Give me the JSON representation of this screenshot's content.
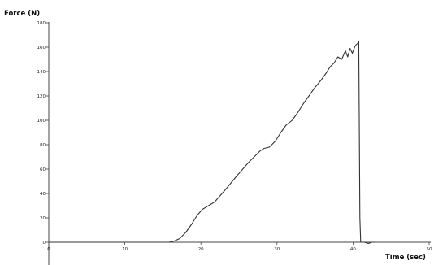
{
  "chart_data": {
    "type": "line",
    "title": "",
    "xlabel": "Time (sec)",
    "ylabel": "Force (N)",
    "xlim": [
      0,
      50
    ],
    "ylim": [
      -20,
      180
    ],
    "x_ticks": [
      0,
      10,
      20,
      30,
      40,
      50
    ],
    "x_tick_labels": [
      "0",
      "10",
      "20",
      "30",
      "40",
      "50"
    ],
    "y_ticks": [
      -20,
      0,
      20,
      40,
      60,
      80,
      100,
      120,
      140,
      160,
      180
    ],
    "y_tick_labels": [
      "-20",
      "0",
      "20",
      "40",
      "60",
      "80",
      "100",
      "120",
      "140",
      "160",
      "180"
    ],
    "grid": false,
    "line_color": "#333333",
    "series": [
      {
        "x": [
          0,
          15.8,
          16.5,
          17.2,
          18.0,
          18.8,
          19.5,
          20.2,
          21.0,
          21.8,
          22.5,
          23.2,
          24.0,
          24.8,
          25.5,
          26.2,
          27.0,
          27.8,
          28.3,
          29.0,
          29.8,
          30.5,
          31.2,
          32.0,
          32.8,
          33.5,
          34.2,
          35.0,
          35.8,
          36.5,
          37.0,
          37.5,
          38.0,
          38.5,
          39.0,
          39.3,
          39.6,
          39.9,
          40.2,
          40.4,
          40.6,
          40.75,
          40.9,
          41.0,
          41.5,
          42.0,
          42.5,
          43.0
        ],
        "y": [
          0,
          0,
          1,
          3,
          8,
          15,
          22,
          27,
          30,
          33,
          38,
          43,
          49,
          55,
          60,
          65,
          70,
          75,
          77,
          78,
          83,
          90,
          96,
          100,
          107,
          114,
          120,
          127,
          133,
          139,
          144,
          147,
          152,
          150,
          157,
          152,
          159,
          155,
          160,
          162,
          163,
          165,
          20,
          0,
          0,
          -1,
          0,
          0
        ]
      }
    ]
  }
}
